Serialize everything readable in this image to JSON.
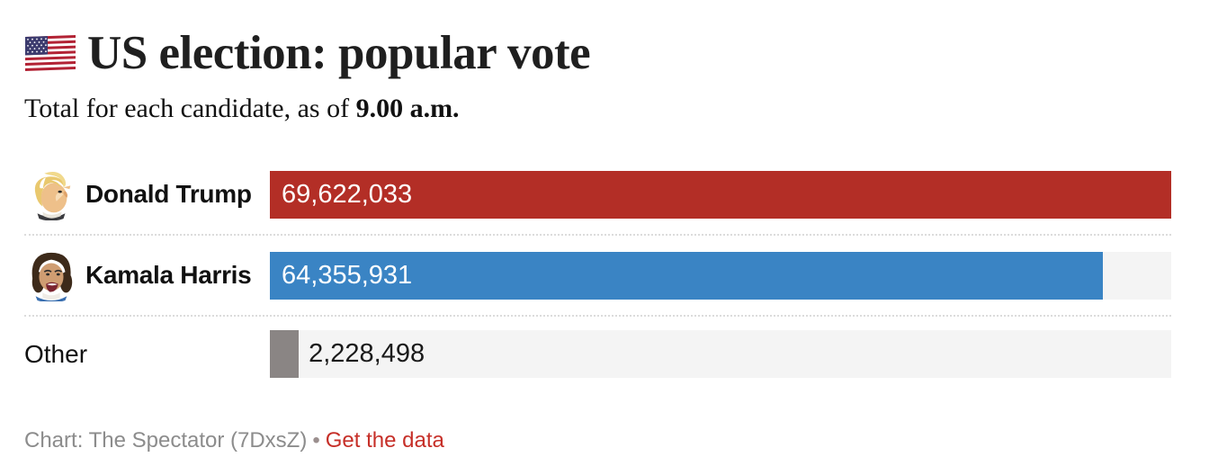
{
  "header": {
    "title": "US election: popular vote",
    "subtitle_prefix": "Total for each candidate, as of ",
    "subtitle_bold": "9.00 a.m.",
    "flag_icon": "us-flag-icon"
  },
  "chart_data": {
    "type": "bar",
    "orientation": "horizontal",
    "title": "US election: popular vote",
    "subtitle": "Total for each candidate, as of 9.00 a.m.",
    "categories": [
      "Donald Trump",
      "Kamala Harris",
      "Other"
    ],
    "values": [
      69622033,
      64355931,
      2228498
    ],
    "value_labels": [
      "69,622,033",
      "64,355,931",
      "2,228,498"
    ],
    "bar_colors": [
      "#b32e26",
      "#3a84c4",
      "#8a8584"
    ],
    "track_color": "#f4f4f4",
    "xlim": [
      0,
      69622033
    ],
    "grid": false,
    "legend": false
  },
  "rows": [
    {
      "label": "Donald Trump",
      "value_label": "69,622,033",
      "avatar_icon": "donald-trump-caricature-avatar",
      "value_position": "inside"
    },
    {
      "label": "Kamala Harris",
      "value_label": "64,355,931",
      "avatar_icon": "kamala-harris-caricature-avatar",
      "value_position": "inside"
    },
    {
      "label": "Other",
      "value_label": "2,228,498",
      "avatar_icon": null,
      "value_position": "outside"
    }
  ],
  "footer": {
    "source_text": "Chart: The Spectator (7DxsZ)",
    "separator": "•",
    "link_label": "Get the data",
    "link_color": "#c62f28"
  }
}
